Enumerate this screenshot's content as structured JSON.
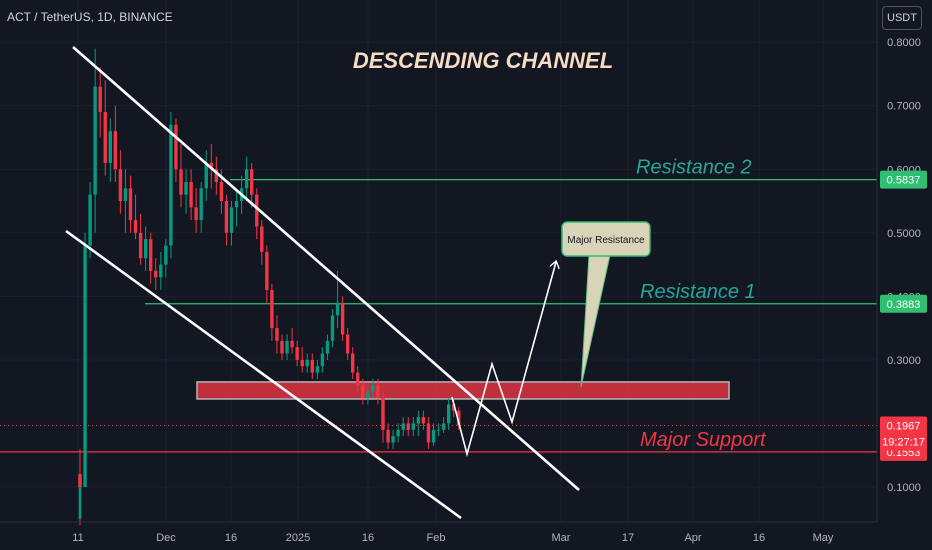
{
  "header": {
    "symbol_text": "ACT / TetherUS, 1D, BINANCE",
    "currency": "USDT"
  },
  "chart_data": {
    "type": "candlestick",
    "title": "DESCENDING CHANNEL",
    "y_axis_ticks": [
      "0.8000",
      "0.7000",
      "0.6000",
      "0.5000",
      "0.4000",
      "0.3000",
      "0.1000"
    ],
    "x_axis_ticks": [
      "11",
      "Dec",
      "16",
      "2025",
      "16",
      "Feb",
      "Mar",
      "17",
      "Apr",
      "16",
      "May"
    ],
    "ylim": [
      0.04,
      0.83
    ],
    "levels": [
      {
        "label": "Resistance 2",
        "value": 0.5837,
        "price_label": "0.5837",
        "color": "#2fbf71",
        "text_color": "#26a69a"
      },
      {
        "label": "Resistance 1",
        "value": 0.3883,
        "price_label": "0.3883",
        "color": "#2fbf71",
        "text_color": "#26a69a"
      },
      {
        "label": "Major Support",
        "value": 0.1553,
        "price_label": "0.1553",
        "color": "#f23645",
        "text_color": "#f23645"
      }
    ],
    "current_price": {
      "value": 0.1967,
      "label": "0.1967",
      "countdown": "19:27:17",
      "color": "#f23645"
    },
    "resistance_zone": {
      "from": 0.2385,
      "to": 0.2653,
      "color": "#f23645"
    },
    "callout": "Major Resistance",
    "channel": {
      "upper": [
        [
          0.84,
          0.18
        ],
        [
          0.26,
          0.02
        ]
      ],
      "lower": [
        [
          0.67,
          0.01
        ],
        [
          0.09,
          -0.16
        ]
      ]
    },
    "projection": [
      0.2385,
      0.155,
      0.29,
      0.2,
      0.45
    ],
    "candles": [
      [
        0.12,
        0.16,
        0.04,
        0.1
      ],
      [
        0.1,
        0.5,
        0.1,
        0.48
      ],
      [
        0.48,
        0.58,
        0.46,
        0.56
      ],
      [
        0.56,
        0.79,
        0.5,
        0.73
      ],
      [
        0.73,
        0.76,
        0.65,
        0.69
      ],
      [
        0.69,
        0.74,
        0.59,
        0.61
      ],
      [
        0.61,
        0.68,
        0.58,
        0.66
      ],
      [
        0.66,
        0.7,
        0.58,
        0.6
      ],
      [
        0.6,
        0.63,
        0.53,
        0.55
      ],
      [
        0.55,
        0.6,
        0.5,
        0.57
      ],
      [
        0.57,
        0.59,
        0.5,
        0.52
      ],
      [
        0.52,
        0.56,
        0.49,
        0.5
      ],
      [
        0.5,
        0.53,
        0.45,
        0.46
      ],
      [
        0.46,
        0.51,
        0.44,
        0.49
      ],
      [
        0.49,
        0.5,
        0.42,
        0.44
      ],
      [
        0.44,
        0.46,
        0.41,
        0.43
      ],
      [
        0.43,
        0.47,
        0.41,
        0.45
      ],
      [
        0.45,
        0.49,
        0.43,
        0.48
      ],
      [
        0.48,
        0.69,
        0.46,
        0.67
      ],
      [
        0.67,
        0.68,
        0.58,
        0.6
      ],
      [
        0.6,
        0.64,
        0.54,
        0.56
      ],
      [
        0.56,
        0.6,
        0.53,
        0.58
      ],
      [
        0.58,
        0.6,
        0.52,
        0.54
      ],
      [
        0.54,
        0.57,
        0.5,
        0.52
      ],
      [
        0.52,
        0.58,
        0.5,
        0.57
      ],
      [
        0.57,
        0.63,
        0.55,
        0.61
      ],
      [
        0.61,
        0.64,
        0.57,
        0.6
      ],
      [
        0.6,
        0.62,
        0.56,
        0.58
      ],
      [
        0.58,
        0.6,
        0.53,
        0.55
      ],
      [
        0.55,
        0.56,
        0.48,
        0.5
      ],
      [
        0.5,
        0.55,
        0.48,
        0.54
      ],
      [
        0.54,
        0.57,
        0.51,
        0.55
      ],
      [
        0.55,
        0.59,
        0.53,
        0.57
      ],
      [
        0.57,
        0.62,
        0.55,
        0.6
      ],
      [
        0.6,
        0.61,
        0.54,
        0.56
      ],
      [
        0.56,
        0.57,
        0.49,
        0.51
      ],
      [
        0.51,
        0.52,
        0.45,
        0.47
      ],
      [
        0.47,
        0.48,
        0.39,
        0.41
      ],
      [
        0.41,
        0.42,
        0.33,
        0.35
      ],
      [
        0.35,
        0.37,
        0.31,
        0.33
      ],
      [
        0.33,
        0.34,
        0.3,
        0.31
      ],
      [
        0.31,
        0.34,
        0.3,
        0.33
      ],
      [
        0.33,
        0.35,
        0.31,
        0.32
      ],
      [
        0.32,
        0.33,
        0.29,
        0.3
      ],
      [
        0.3,
        0.32,
        0.28,
        0.29
      ],
      [
        0.29,
        0.31,
        0.28,
        0.3
      ],
      [
        0.3,
        0.31,
        0.27,
        0.28
      ],
      [
        0.28,
        0.3,
        0.27,
        0.29
      ],
      [
        0.29,
        0.32,
        0.28,
        0.31
      ],
      [
        0.31,
        0.34,
        0.3,
        0.33
      ],
      [
        0.33,
        0.38,
        0.32,
        0.37
      ],
      [
        0.37,
        0.44,
        0.35,
        0.39
      ],
      [
        0.39,
        0.4,
        0.33,
        0.34
      ],
      [
        0.34,
        0.35,
        0.3,
        0.31
      ],
      [
        0.31,
        0.32,
        0.27,
        0.28
      ],
      [
        0.28,
        0.29,
        0.25,
        0.26
      ],
      [
        0.26,
        0.27,
        0.23,
        0.24
      ],
      [
        0.24,
        0.26,
        0.23,
        0.25
      ],
      [
        0.25,
        0.27,
        0.24,
        0.26
      ],
      [
        0.26,
        0.27,
        0.23,
        0.24
      ],
      [
        0.24,
        0.25,
        0.17,
        0.19
      ],
      [
        0.19,
        0.2,
        0.16,
        0.17
      ],
      [
        0.17,
        0.19,
        0.16,
        0.18
      ],
      [
        0.18,
        0.2,
        0.17,
        0.19
      ],
      [
        0.19,
        0.21,
        0.18,
        0.2
      ],
      [
        0.2,
        0.21,
        0.18,
        0.19
      ],
      [
        0.19,
        0.21,
        0.18,
        0.2
      ],
      [
        0.2,
        0.22,
        0.18,
        0.21
      ],
      [
        0.21,
        0.22,
        0.19,
        0.2
      ],
      [
        0.2,
        0.21,
        0.16,
        0.17
      ],
      [
        0.17,
        0.2,
        0.165,
        0.19
      ],
      [
        0.19,
        0.2,
        0.18,
        0.19
      ],
      [
        0.19,
        0.21,
        0.185,
        0.2
      ],
      [
        0.2,
        0.24,
        0.19,
        0.23
      ],
      [
        0.23,
        0.24,
        0.21,
        0.22
      ],
      [
        0.22,
        0.225,
        0.19,
        0.197
      ]
    ]
  }
}
